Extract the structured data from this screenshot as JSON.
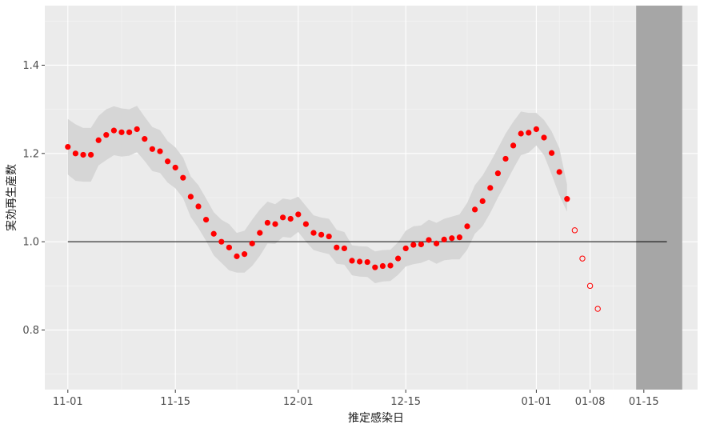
{
  "chart_data": {
    "type": "scatter",
    "title": "",
    "xlabel": "推定感染日",
    "ylabel": "実効再生産数",
    "x_tick_labels": [
      "11-01",
      "11-15",
      "12-01",
      "12-15",
      "01-01",
      "01-08",
      "01-15"
    ],
    "y_tick_labels": [
      "0.8",
      "1.0",
      "1.2",
      "1.4"
    ],
    "xlim": [
      "2020-10-29",
      "2021-01-22"
    ],
    "ylim": [
      0.665,
      1.535
    ],
    "grid": true,
    "reference_line": {
      "y": 1.0,
      "from": "2020-11-01",
      "to": "2021-01-18"
    },
    "shaded_region": {
      "from": "2021-01-14",
      "to": "2021-01-20"
    },
    "series": [
      {
        "style": "filled",
        "color": "#ff0000",
        "x": [
          "2020-11-01",
          "2020-11-02",
          "2020-11-03",
          "2020-11-04",
          "2020-11-05",
          "2020-11-06",
          "2020-11-07",
          "2020-11-08",
          "2020-11-09",
          "2020-11-10",
          "2020-11-11",
          "2020-11-12",
          "2020-11-13",
          "2020-11-14",
          "2020-11-15",
          "2020-11-16",
          "2020-11-17",
          "2020-11-18",
          "2020-11-19",
          "2020-11-20",
          "2020-11-21",
          "2020-11-22",
          "2020-11-23",
          "2020-11-24",
          "2020-11-25",
          "2020-11-26",
          "2020-11-27",
          "2020-11-28",
          "2020-11-29",
          "2020-11-30",
          "2020-12-01",
          "2020-12-02",
          "2020-12-03",
          "2020-12-04",
          "2020-12-05",
          "2020-12-06",
          "2020-12-07",
          "2020-12-08",
          "2020-12-09",
          "2020-12-10",
          "2020-12-11",
          "2020-12-12",
          "2020-12-13",
          "2020-12-14",
          "2020-12-15",
          "2020-12-16",
          "2020-12-17",
          "2020-12-18",
          "2020-12-19",
          "2020-12-20",
          "2020-12-21",
          "2020-12-22",
          "2020-12-23",
          "2020-12-24",
          "2020-12-25",
          "2020-12-26",
          "2020-12-27",
          "2020-12-28",
          "2020-12-29",
          "2020-12-30",
          "2020-12-31",
          "2021-01-01",
          "2021-01-02",
          "2021-01-03",
          "2021-01-04",
          "2021-01-05"
        ],
        "y": [
          1.215,
          1.2,
          1.197,
          1.197,
          1.23,
          1.242,
          1.252,
          1.248,
          1.248,
          1.255,
          1.233,
          1.21,
          1.205,
          1.182,
          1.168,
          1.145,
          1.102,
          1.08,
          1.05,
          1.018,
          1.0,
          0.987,
          0.967,
          0.972,
          0.996,
          1.02,
          1.043,
          1.04,
          1.055,
          1.052,
          1.062,
          1.04,
          1.02,
          1.016,
          1.012,
          0.987,
          0.985,
          0.957,
          0.955,
          0.954,
          0.942,
          0.945,
          0.946,
          0.962,
          0.985,
          0.993,
          0.994,
          1.004,
          0.996,
          1.005,
          1.008,
          1.01,
          1.035,
          1.073,
          1.092,
          1.122,
          1.155,
          1.188,
          1.218,
          1.245,
          1.247,
          1.255,
          1.236,
          1.201,
          1.158,
          1.097
        ]
      },
      {
        "style": "open",
        "color": "#ff0000",
        "x": [
          "2021-01-06",
          "2021-01-07",
          "2021-01-08",
          "2021-01-09"
        ],
        "y": [
          1.026,
          0.962,
          0.9,
          0.848
        ]
      }
    ],
    "confidence_band": {
      "x": [
        "2020-11-01",
        "2020-11-02",
        "2020-11-03",
        "2020-11-04",
        "2020-11-05",
        "2020-11-06",
        "2020-11-07",
        "2020-11-08",
        "2020-11-09",
        "2020-11-10",
        "2020-11-11",
        "2020-11-12",
        "2020-11-13",
        "2020-11-14",
        "2020-11-15",
        "2020-11-16",
        "2020-11-17",
        "2020-11-18",
        "2020-11-19",
        "2020-11-20",
        "2020-11-21",
        "2020-11-22",
        "2020-11-23",
        "2020-11-24",
        "2020-11-25",
        "2020-11-26",
        "2020-11-27",
        "2020-11-28",
        "2020-11-29",
        "2020-11-30",
        "2020-12-01",
        "2020-12-02",
        "2020-12-03",
        "2020-12-04",
        "2020-12-05",
        "2020-12-06",
        "2020-12-07",
        "2020-12-08",
        "2020-12-09",
        "2020-12-10",
        "2020-12-11",
        "2020-12-12",
        "2020-12-13",
        "2020-12-14",
        "2020-12-15",
        "2020-12-16",
        "2020-12-17",
        "2020-12-18",
        "2020-12-19",
        "2020-12-20",
        "2020-12-21",
        "2020-12-22",
        "2020-12-23",
        "2020-12-24",
        "2020-12-25",
        "2020-12-26",
        "2020-12-27",
        "2020-12-28",
        "2020-12-29",
        "2020-12-30",
        "2020-12-31",
        "2021-01-01",
        "2021-01-02",
        "2021-01-03",
        "2021-01-04",
        "2021-01-05"
      ],
      "upper": [
        1.278,
        1.266,
        1.258,
        1.258,
        1.285,
        1.3,
        1.307,
        1.302,
        1.3,
        1.308,
        1.283,
        1.26,
        1.253,
        1.228,
        1.214,
        1.191,
        1.148,
        1.128,
        1.098,
        1.067,
        1.05,
        1.04,
        1.02,
        1.025,
        1.05,
        1.073,
        1.091,
        1.085,
        1.098,
        1.095,
        1.102,
        1.081,
        1.06,
        1.055,
        1.052,
        1.027,
        1.022,
        0.992,
        0.99,
        0.989,
        0.978,
        0.981,
        0.982,
        0.999,
        1.025,
        1.035,
        1.037,
        1.05,
        1.043,
        1.052,
        1.057,
        1.062,
        1.088,
        1.128,
        1.15,
        1.18,
        1.212,
        1.245,
        1.272,
        1.295,
        1.292,
        1.292,
        1.276,
        1.25,
        1.212,
        1.13
      ],
      "lower": [
        1.152,
        1.138,
        1.136,
        1.136,
        1.173,
        1.185,
        1.196,
        1.193,
        1.195,
        1.203,
        1.183,
        1.16,
        1.156,
        1.134,
        1.121,
        1.099,
        1.056,
        1.031,
        1.002,
        0.969,
        0.952,
        0.935,
        0.93,
        0.93,
        0.945,
        0.968,
        0.996,
        0.995,
        1.011,
        1.009,
        1.022,
        1.0,
        0.981,
        0.976,
        0.972,
        0.95,
        0.948,
        0.924,
        0.921,
        0.92,
        0.906,
        0.91,
        0.911,
        0.925,
        0.944,
        0.949,
        0.952,
        0.959,
        0.95,
        0.958,
        0.96,
        0.96,
        0.982,
        1.018,
        1.035,
        1.065,
        1.1,
        1.132,
        1.165,
        1.196,
        1.202,
        1.218,
        1.196,
        1.152,
        1.105,
        1.068
      ]
    }
  }
}
